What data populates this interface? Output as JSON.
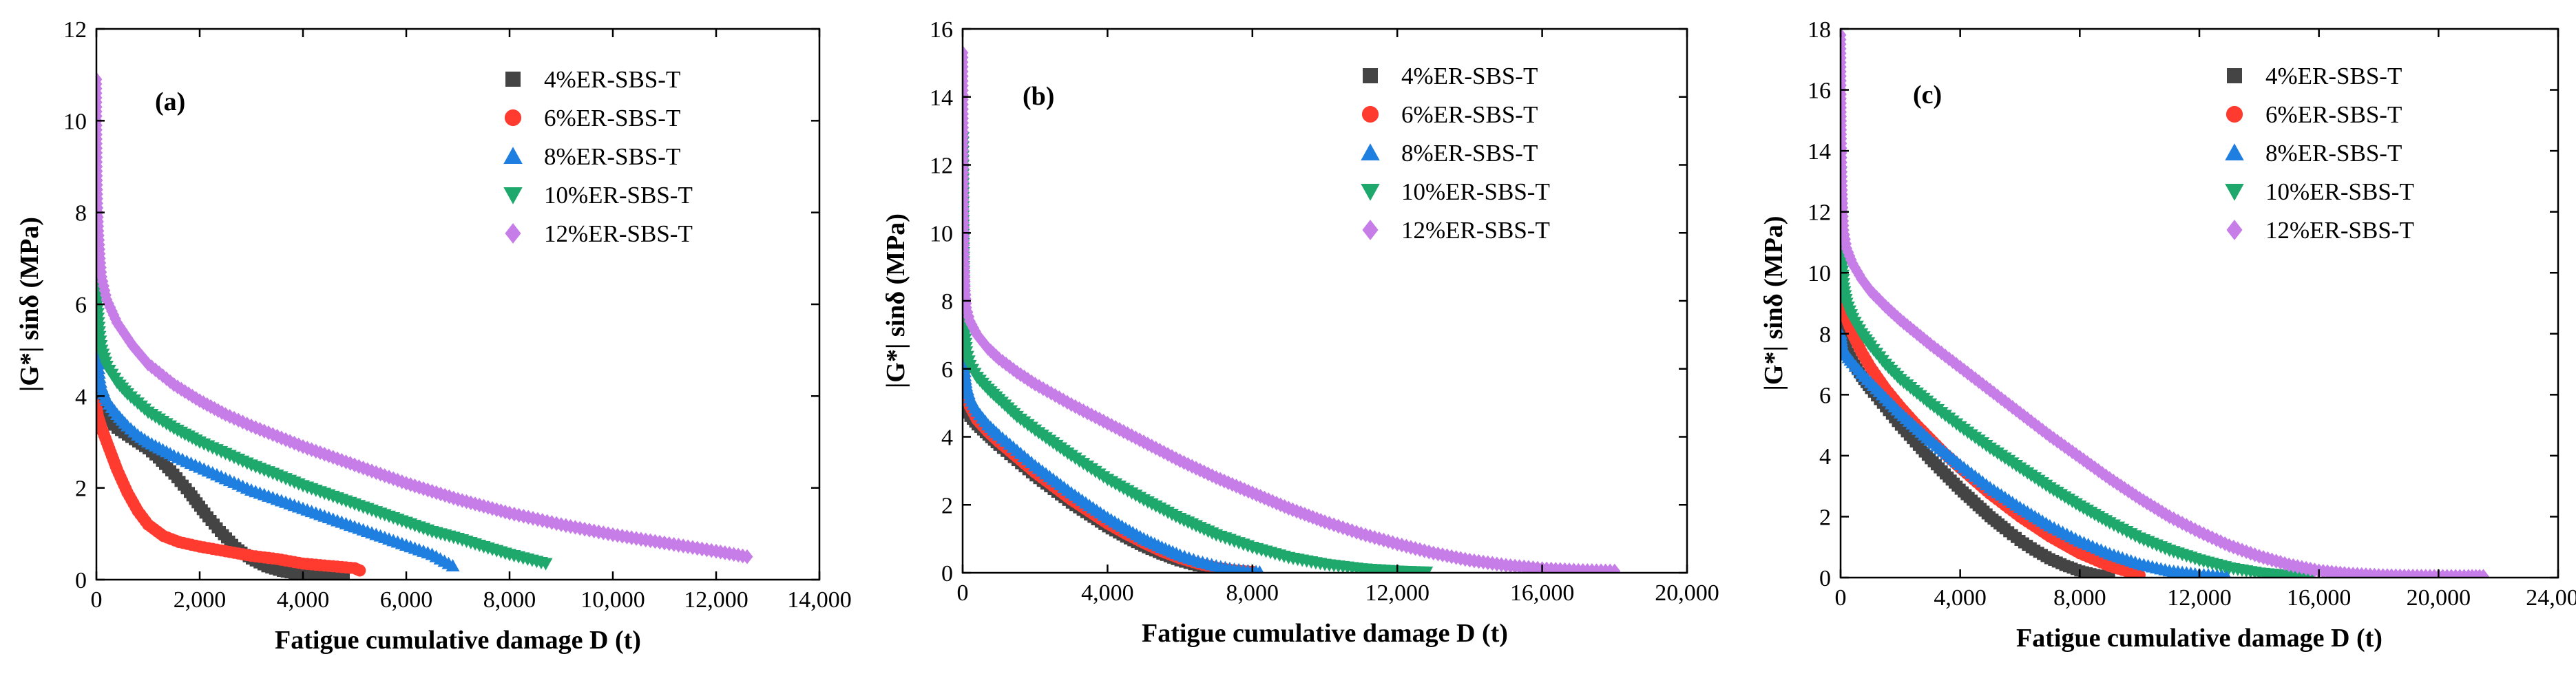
{
  "chart_data": [
    {
      "type": "scatter",
      "panel_label": "(a)",
      "xlabel": "Fatigue cumulative damage D (t)",
      "ylabel": "|G*| sinδ (MPa)",
      "xlim": [
        0,
        14000
      ],
      "ylim": [
        0,
        12
      ],
      "x_ticks": [
        0,
        2000,
        4000,
        6000,
        8000,
        10000,
        12000,
        14000
      ],
      "x_tick_labels": [
        "0",
        "2,000",
        "4,000",
        "6,000",
        "8,000",
        "10,000",
        "12,000",
        "14,000"
      ],
      "y_ticks": [
        0,
        2,
        4,
        6,
        8,
        10,
        12
      ],
      "y_tick_labels": [
        "0",
        "2",
        "4",
        "6",
        "8",
        "10",
        "12"
      ],
      "legend_position": "top-right",
      "series": [
        {
          "name": "4%ER-SBS-T",
          "color": "#444444",
          "marker": "square",
          "x": [
            0,
            10,
            30,
            60,
            100,
            200,
            400,
            600,
            800,
            1000,
            1200,
            1500,
            1800,
            2100,
            2400,
            2700,
            3000,
            3300,
            3600,
            3900,
            4200,
            4500,
            4800
          ],
          "y": [
            4.0,
            3.9,
            3.8,
            3.7,
            3.6,
            3.5,
            3.3,
            3.15,
            3.0,
            2.85,
            2.65,
            2.3,
            1.9,
            1.45,
            1.05,
            0.7,
            0.45,
            0.28,
            0.18,
            0.12,
            0.08,
            0.05,
            0.03
          ]
        },
        {
          "name": "6%ER-SBS-T",
          "color": "#ff3b30",
          "marker": "circle",
          "x": [
            0,
            10,
            30,
            60,
            100,
            200,
            300,
            400,
            600,
            800,
            1000,
            1300,
            1600,
            2000,
            2500,
            3000,
            3500,
            4000,
            4500,
            5000,
            5100
          ],
          "y": [
            3.8,
            3.7,
            3.55,
            3.45,
            3.3,
            3.0,
            2.7,
            2.4,
            1.9,
            1.5,
            1.2,
            0.95,
            0.82,
            0.72,
            0.62,
            0.52,
            0.45,
            0.35,
            0.3,
            0.25,
            0.2
          ]
        },
        {
          "name": "8%ER-SBS-T",
          "color": "#1e7fe0",
          "marker": "triangle-up",
          "x": [
            0,
            10,
            30,
            60,
            100,
            200,
            400,
            600,
            800,
            1000,
            1500,
            2000,
            2500,
            3000,
            3500,
            4000,
            4500,
            5000,
            5500,
            6000,
            6500,
            6900
          ],
          "y": [
            5.8,
            5.1,
            4.7,
            4.4,
            4.2,
            3.9,
            3.6,
            3.35,
            3.15,
            3.0,
            2.7,
            2.45,
            2.2,
            1.95,
            1.75,
            1.55,
            1.35,
            1.15,
            0.95,
            0.75,
            0.55,
            0.3
          ]
        },
        {
          "name": "10%ER-SBS-T",
          "color": "#1fa86b",
          "marker": "triangle-down",
          "x": [
            0,
            10,
            30,
            60,
            100,
            200,
            400,
            600,
            800,
            1000,
            1500,
            2000,
            2500,
            3000,
            3500,
            4000,
            4500,
            5000,
            5500,
            6000,
            6500,
            7000,
            7500,
            8000,
            8700
          ],
          "y": [
            7.2,
            6.2,
            5.7,
            5.3,
            5.0,
            4.65,
            4.3,
            4.05,
            3.85,
            3.65,
            3.3,
            3.0,
            2.75,
            2.5,
            2.28,
            2.05,
            1.85,
            1.65,
            1.45,
            1.25,
            1.05,
            0.9,
            0.72,
            0.55,
            0.35
          ]
        },
        {
          "name": "12%ER-SBS-T",
          "color": "#c77de8",
          "marker": "diamond",
          "x": [
            0,
            5,
            10,
            20,
            40,
            70,
            100,
            200,
            400,
            700,
            1000,
            1500,
            2000,
            2500,
            3000,
            4000,
            5000,
            6000,
            7000,
            8000,
            9000,
            10000,
            11000,
            12000,
            12600
          ],
          "y": [
            10.9,
            9.8,
            9.0,
            8.2,
            7.6,
            7.0,
            6.6,
            6.1,
            5.6,
            5.1,
            4.7,
            4.25,
            3.9,
            3.6,
            3.35,
            2.9,
            2.5,
            2.1,
            1.75,
            1.45,
            1.2,
            0.98,
            0.8,
            0.62,
            0.5
          ]
        }
      ]
    },
    {
      "type": "scatter",
      "panel_label": "(b)",
      "xlabel": "Fatigue cumulative damage D (t)",
      "ylabel": "|G*| sinδ (MPa)",
      "xlim": [
        0,
        20000
      ],
      "ylim": [
        0,
        16
      ],
      "x_ticks": [
        0,
        4000,
        8000,
        12000,
        16000,
        20000
      ],
      "x_tick_labels": [
        "0",
        "4,000",
        "8,000",
        "12,000",
        "16,000",
        "20,000"
      ],
      "y_ticks": [
        0,
        2,
        4,
        6,
        8,
        10,
        12,
        14,
        16
      ],
      "y_tick_labels": [
        "0",
        "2",
        "4",
        "6",
        "8",
        "10",
        "12",
        "14",
        "16"
      ],
      "legend_position": "top-right",
      "series": [
        {
          "name": "4%ER-SBS-T",
          "color": "#444444",
          "marker": "square",
          "x": [
            0,
            10,
            30,
            60,
            100,
            200,
            400,
            700,
            1000,
            1500,
            2000,
            2500,
            3000,
            3500,
            4000,
            4500,
            5000,
            5500,
            6000,
            6500,
            7000,
            7500
          ],
          "y": [
            6.0,
            5.6,
            5.3,
            5.0,
            4.8,
            4.6,
            4.35,
            4.05,
            3.75,
            3.3,
            2.85,
            2.45,
            2.05,
            1.7,
            1.35,
            1.05,
            0.78,
            0.55,
            0.35,
            0.2,
            0.1,
            0.03
          ]
        },
        {
          "name": "6%ER-SBS-T",
          "color": "#ff3b30",
          "marker": "circle",
          "x": [
            0,
            10,
            30,
            60,
            100,
            200,
            400,
            700,
            1000,
            1500,
            2000,
            2500,
            3000,
            3500,
            4000,
            4500,
            5000,
            5500,
            6000,
            6500,
            7000,
            7500,
            8000
          ],
          "y": [
            8.5,
            7.0,
            6.0,
            5.5,
            5.2,
            4.9,
            4.5,
            4.15,
            3.85,
            3.4,
            2.95,
            2.55,
            2.15,
            1.8,
            1.45,
            1.15,
            0.88,
            0.63,
            0.43,
            0.27,
            0.15,
            0.07,
            0.03
          ]
        },
        {
          "name": "8%ER-SBS-T",
          "color": "#1e7fe0",
          "marker": "triangle-up",
          "x": [
            0,
            10,
            30,
            60,
            100,
            200,
            400,
            700,
            1000,
            1500,
            2000,
            2500,
            3000,
            3500,
            4000,
            4500,
            5000,
            5500,
            6000,
            6500,
            7000,
            7500,
            8000,
            8200
          ],
          "y": [
            9.8,
            7.5,
            6.4,
            5.8,
            5.5,
            5.15,
            4.75,
            4.35,
            4.05,
            3.6,
            3.15,
            2.75,
            2.35,
            1.98,
            1.62,
            1.3,
            1.0,
            0.75,
            0.52,
            0.34,
            0.2,
            0.1,
            0.04,
            0.02
          ]
        },
        {
          "name": "10%ER-SBS-T",
          "color": "#1fa86b",
          "marker": "triangle-down",
          "x": [
            0,
            10,
            30,
            60,
            100,
            200,
            400,
            700,
            1000,
            1500,
            2000,
            3000,
            4000,
            5000,
            6000,
            7000,
            8000,
            9000,
            10000,
            11000,
            12000,
            12800
          ],
          "y": [
            12.8,
            10.5,
            8.2,
            7.0,
            6.5,
            6.1,
            5.75,
            5.4,
            5.1,
            4.6,
            4.2,
            3.45,
            2.75,
            2.15,
            1.6,
            1.12,
            0.75,
            0.45,
            0.25,
            0.12,
            0.05,
            0.02
          ]
        },
        {
          "name": "12%ER-SBS-T",
          "color": "#c77de8",
          "marker": "diamond",
          "x": [
            0,
            10,
            20,
            40,
            70,
            100,
            200,
            400,
            700,
            1000,
            1500,
            2000,
            3000,
            4000,
            5000,
            6000,
            7000,
            8000,
            9000,
            10000,
            11000,
            12000,
            13000,
            14000,
            15000,
            16000,
            17000,
            18000
          ],
          "y": [
            15.3,
            13.5,
            11.5,
            9.5,
            8.3,
            7.8,
            7.4,
            7.0,
            6.6,
            6.3,
            5.9,
            5.55,
            4.95,
            4.4,
            3.85,
            3.3,
            2.8,
            2.35,
            1.9,
            1.5,
            1.15,
            0.85,
            0.58,
            0.37,
            0.22,
            0.12,
            0.07,
            0.05
          ]
        }
      ]
    },
    {
      "type": "scatter",
      "panel_label": "(c)",
      "xlabel": "Fatigue cumulative damage D (t)",
      "ylabel": "|G*| sinδ (MPa)",
      "xlim": [
        0,
        24000
      ],
      "ylim": [
        0,
        18
      ],
      "x_ticks": [
        0,
        4000,
        8000,
        12000,
        16000,
        20000,
        24000
      ],
      "x_tick_labels": [
        "0",
        "4,000",
        "8,000",
        "12,000",
        "16,000",
        "20,000",
        "24,000"
      ],
      "y_ticks": [
        0,
        2,
        4,
        6,
        8,
        10,
        12,
        14,
        16,
        18
      ],
      "y_tick_labels": [
        "0",
        "2",
        "4",
        "6",
        "8",
        "10",
        "12",
        "14",
        "16",
        "18"
      ],
      "legend_position": "top-right",
      "series": [
        {
          "name": "4%ER-SBS-T",
          "color": "#444444",
          "marker": "square",
          "x": [
            0,
            20,
            50,
            100,
            200,
            400,
            700,
            1000,
            1500,
            2000,
            2500,
            3000,
            3500,
            4000,
            4500,
            5000,
            5500,
            6000,
            6500,
            7000,
            7500,
            8000,
            8500,
            9000
          ],
          "y": [
            8.8,
            8.4,
            8.1,
            7.8,
            7.5,
            7.1,
            6.6,
            6.2,
            5.6,
            5.0,
            4.45,
            3.9,
            3.4,
            2.9,
            2.45,
            2.0,
            1.6,
            1.22,
            0.9,
            0.62,
            0.4,
            0.22,
            0.1,
            0.03
          ]
        },
        {
          "name": "6%ER-SBS-T",
          "color": "#ff3b30",
          "marker": "circle",
          "x": [
            0,
            20,
            50,
            100,
            200,
            400,
            700,
            1000,
            1500,
            2000,
            2500,
            3000,
            3500,
            4000,
            5000,
            6000,
            7000,
            8000,
            9000,
            10000
          ],
          "y": [
            10.6,
            10.0,
            9.5,
            9.0,
            8.5,
            8.0,
            7.4,
            6.9,
            6.2,
            5.6,
            5.05,
            4.55,
            4.05,
            3.6,
            2.75,
            2.0,
            1.35,
            0.8,
            0.38,
            0.08
          ]
        },
        {
          "name": "8%ER-SBS-T",
          "color": "#1e7fe0",
          "marker": "triangle-up",
          "x": [
            0,
            20,
            50,
            100,
            200,
            400,
            700,
            1000,
            1500,
            2000,
            2500,
            3000,
            4000,
            5000,
            6000,
            7000,
            8000,
            9000,
            10000,
            11000,
            12000,
            12900
          ],
          "y": [
            8.0,
            7.8,
            7.6,
            7.45,
            7.3,
            7.05,
            6.7,
            6.4,
            5.9,
            5.4,
            4.95,
            4.5,
            3.7,
            2.95,
            2.3,
            1.7,
            1.2,
            0.78,
            0.45,
            0.22,
            0.1,
            0.05
          ]
        },
        {
          "name": "10%ER-SBS-T",
          "color": "#1fa86b",
          "marker": "triangle-down",
          "x": [
            0,
            20,
            50,
            100,
            200,
            400,
            700,
            1000,
            1500,
            2000,
            3000,
            4000,
            5000,
            6000,
            7000,
            8000,
            9000,
            10000,
            11000,
            12000,
            13000,
            14000,
            15000,
            15700
          ],
          "y": [
            13.3,
            11.5,
            10.2,
            9.5,
            9.0,
            8.5,
            8.0,
            7.6,
            7.0,
            6.5,
            5.7,
            4.95,
            4.25,
            3.6,
            2.95,
            2.35,
            1.8,
            1.3,
            0.9,
            0.58,
            0.32,
            0.15,
            0.06,
            0.02
          ]
        },
        {
          "name": "12%ER-SBS-T",
          "color": "#c77de8",
          "marker": "diamond",
          "x": [
            0,
            10,
            20,
            40,
            70,
            100,
            200,
            400,
            700,
            1000,
            1500,
            2000,
            3000,
            4000,
            5000,
            6000,
            7000,
            8000,
            9000,
            10000,
            11000,
            12000,
            13000,
            14000,
            15000,
            16000,
            17000,
            18000,
            19000,
            20000,
            21000,
            21500
          ],
          "y": [
            17.8,
            16.0,
            14.4,
            13.0,
            12.0,
            11.4,
            10.8,
            10.3,
            9.8,
            9.4,
            8.9,
            8.45,
            7.65,
            6.9,
            6.15,
            5.4,
            4.65,
            3.95,
            3.25,
            2.6,
            2.0,
            1.5,
            1.05,
            0.7,
            0.42,
            0.22,
            0.12,
            0.07,
            0.05,
            0.04,
            0.04,
            0.04
          ]
        }
      ]
    }
  ]
}
